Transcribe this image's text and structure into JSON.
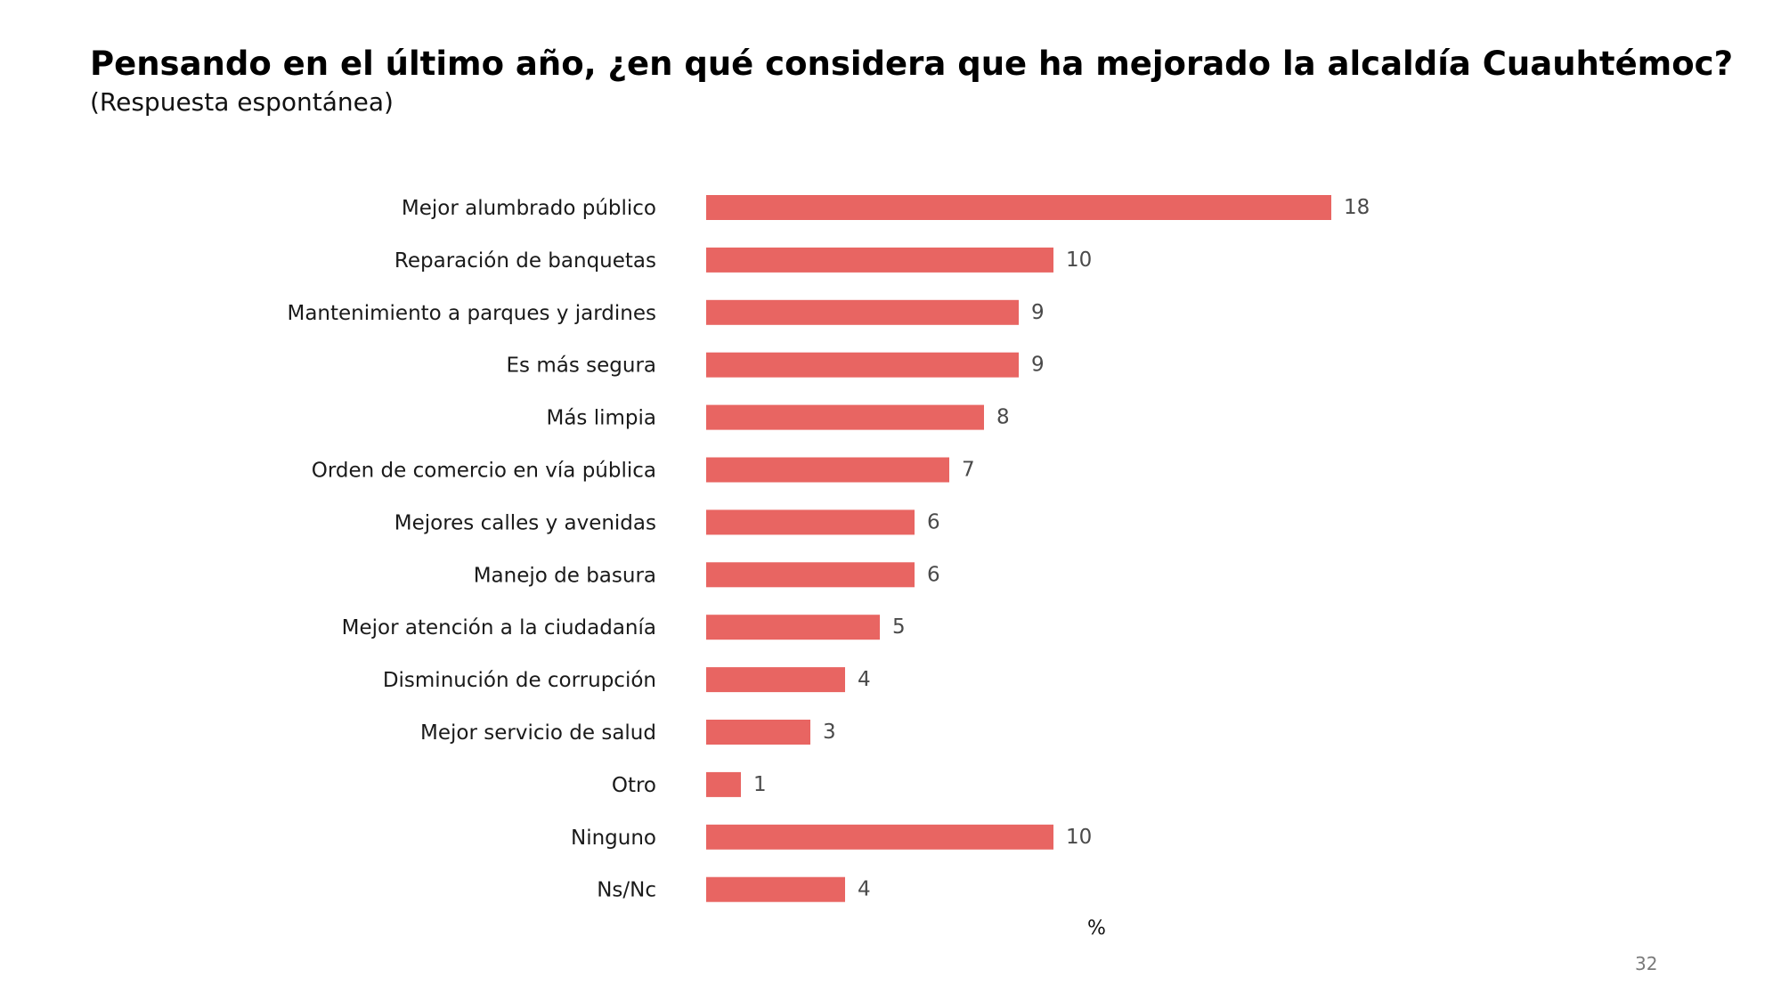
{
  "slide": {
    "title": "Pensando en el último año, ¿en qué considera que ha mejorado la alcaldía Cuauhtémoc?",
    "subtitle": "(Respuesta espontánea)",
    "page_number": "32"
  },
  "chart_data": {
    "type": "bar",
    "orientation": "horizontal",
    "title": "Pensando en el último año, ¿en qué considera que ha mejorado la alcaldía Cuauhtémoc?",
    "subtitle": "(Respuesta espontánea)",
    "xlabel": "%",
    "ylabel": "",
    "xlim": [
      0,
      18
    ],
    "grid": false,
    "legend": "none",
    "bar_color": "#e86562",
    "categories": [
      "Mejor alumbrado público",
      "Reparación de banquetas",
      "Mantenimiento a parques y jardines",
      "Es más segura",
      "Más limpia",
      "Orden de comercio en vía pública",
      "Mejores calles y avenidas",
      "Manejo de basura",
      "Mejor atención a la ciudadanía",
      "Disminución de corrupción",
      "Mejor servicio de salud",
      "Otro",
      "Ninguno",
      "Ns/Nc"
    ],
    "values": [
      18,
      10,
      9,
      9,
      8,
      7,
      6,
      6,
      5,
      4,
      3,
      1,
      10,
      4
    ],
    "data_labels": [
      "18",
      "10",
      "9",
      "9",
      "8",
      "7",
      "6",
      "6",
      "5",
      "4",
      "3",
      "1",
      "10",
      "4"
    ]
  }
}
